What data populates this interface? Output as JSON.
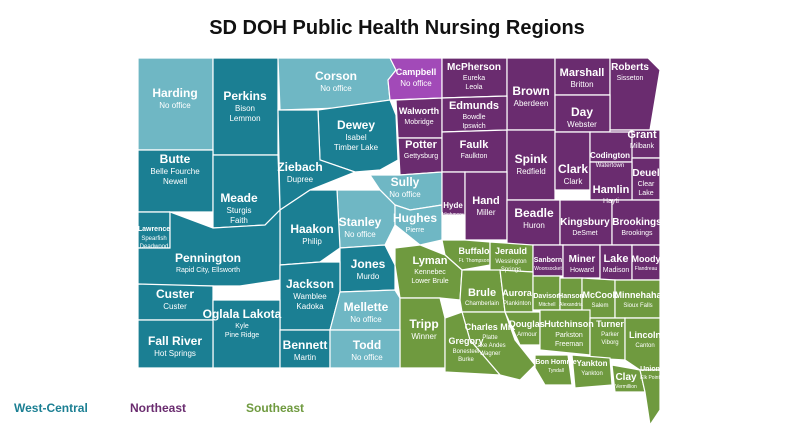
{
  "title": "SD DOH Public Health Nursing Regions",
  "colors": {
    "west_central": "#1b7f93",
    "west_central_no_office": "#6fb7c4",
    "northeast": "#6a2c6f",
    "northeast_light": "#a24ab8",
    "southeast": "#6f9a3f"
  },
  "legend": [
    "West-Central",
    "Northeast",
    "Southeast"
  ],
  "counties": [
    {
      "name": "Harding",
      "lines": [
        "No office"
      ]
    },
    {
      "name": "Perkins",
      "lines": [
        "Bison",
        "Lemmon"
      ]
    },
    {
      "name": "Corson",
      "lines": [
        "No office"
      ]
    },
    {
      "name": "Campbell",
      "lines": [
        "No office"
      ]
    },
    {
      "name": "McPherson",
      "lines": [
        "Eureka",
        "Leola"
      ]
    },
    {
      "name": "Brown",
      "lines": [
        "Aberdeen"
      ]
    },
    {
      "name": "Marshall",
      "lines": [
        "Britton"
      ]
    },
    {
      "name": "Roberts",
      "lines": [
        "Sisseton"
      ]
    },
    {
      "name": "Walworth",
      "lines": [
        "Mobridge"
      ]
    },
    {
      "name": "Edmunds",
      "lines": [
        "Bowdle",
        "Ipswich"
      ]
    },
    {
      "name": "Day",
      "lines": [
        "Webster"
      ]
    },
    {
      "name": "Grant",
      "lines": [
        "Milbank"
      ]
    },
    {
      "name": "Dewey",
      "lines": [
        "Isabel",
        "Timber Lake"
      ]
    },
    {
      "name": "Butte",
      "lines": [
        "Belle Fourche",
        "Newell"
      ]
    },
    {
      "name": "Ziebach",
      "lines": [
        "Dupree"
      ]
    },
    {
      "name": "Potter",
      "lines": [
        "Gettysburg"
      ]
    },
    {
      "name": "Faulk",
      "lines": [
        "Faulkton"
      ]
    },
    {
      "name": "Spink",
      "lines": [
        "Redfield"
      ]
    },
    {
      "name": "Clark",
      "lines": [
        "Clark"
      ]
    },
    {
      "name": "Codington",
      "lines": [
        "Watertown"
      ]
    },
    {
      "name": "Deuel",
      "lines": [
        "Clear",
        "Lake"
      ]
    },
    {
      "name": "Meade",
      "lines": [
        "Sturgis",
        "Faith"
      ]
    },
    {
      "name": "Sully",
      "lines": [
        "No office"
      ]
    },
    {
      "name": "Hamlin",
      "lines": [
        "Hayti"
      ]
    },
    {
      "name": "Lawrence",
      "lines": [
        "Spearfish",
        "Deadwood"
      ]
    },
    {
      "name": "Stanley",
      "lines": [
        "No office"
      ]
    },
    {
      "name": "Hughes",
      "lines": [
        "Pierre"
      ]
    },
    {
      "name": "Hyde",
      "lines": [
        "Highmore"
      ]
    },
    {
      "name": "Hand",
      "lines": [
        "Miller"
      ]
    },
    {
      "name": "Beadle",
      "lines": [
        "Huron"
      ]
    },
    {
      "name": "Kingsbury",
      "lines": [
        "DeSmet"
      ]
    },
    {
      "name": "Brookings",
      "lines": [
        "Brookings"
      ]
    },
    {
      "name": "Haakon",
      "lines": [
        "Philip"
      ]
    },
    {
      "name": "Pennington",
      "lines": [
        "Rapid City, Ellsworth"
      ]
    },
    {
      "name": "Buffalo",
      "lines": [
        "Ft. Thompson"
      ]
    },
    {
      "name": "Jerauld",
      "lines": [
        "Wessington",
        "Springs"
      ]
    },
    {
      "name": "Sanborn",
      "lines": [
        "Woonsocket"
      ]
    },
    {
      "name": "Miner",
      "lines": [
        "Howard"
      ]
    },
    {
      "name": "Lake",
      "lines": [
        "Madison"
      ]
    },
    {
      "name": "Moody",
      "lines": [
        "Flandreau"
      ]
    },
    {
      "name": "Jones",
      "lines": [
        "Murdo"
      ]
    },
    {
      "name": "Lyman",
      "lines": [
        "Kennebec",
        "Lower Brule"
      ]
    },
    {
      "name": "Jackson",
      "lines": [
        "Wamblee",
        "Kadoka"
      ]
    },
    {
      "name": "Custer",
      "lines": [
        "Custer"
      ]
    },
    {
      "name": "Brule",
      "lines": [
        "Chamberlain"
      ]
    },
    {
      "name": "Aurora",
      "lines": [
        "Plankinton"
      ]
    },
    {
      "name": "Davison",
      "lines": [
        "Mitchell"
      ]
    },
    {
      "name": "Hanson",
      "lines": [
        "Alexandria"
      ]
    },
    {
      "name": "McCook",
      "lines": [
        "Salem"
      ]
    },
    {
      "name": "Minnehaha",
      "lines": [
        "Sioux Falls"
      ]
    },
    {
      "name": "Mellette",
      "lines": [
        "No office"
      ]
    },
    {
      "name": "Tripp",
      "lines": [
        "Winner"
      ]
    },
    {
      "name": "Oglala Lakota",
      "lines": [
        "Kyle",
        "Pine Ridge"
      ]
    },
    {
      "name": "Charles Mix",
      "lines": [
        "Platte",
        "Lake Andes",
        "Wagner"
      ]
    },
    {
      "name": "Douglas",
      "lines": [
        "Armour"
      ]
    },
    {
      "name": "Hutchinson",
      "lines": [
        "Parkston",
        "Freeman"
      ]
    },
    {
      "name": "Turner",
      "lines": [
        "Parker",
        "Viborg"
      ]
    },
    {
      "name": "Fall River",
      "lines": [
        "Hot Springs"
      ]
    },
    {
      "name": "Bennett",
      "lines": [
        "Martin"
      ]
    },
    {
      "name": "Todd",
      "lines": [
        "No office"
      ]
    },
    {
      "name": "Gregory",
      "lines": [
        "Bonesteel",
        "Burke"
      ]
    },
    {
      "name": "Lincoln",
      "lines": [
        "Canton"
      ]
    },
    {
      "name": "Bon Homme",
      "lines": [
        "Tyndall"
      ]
    },
    {
      "name": "Yankton",
      "lines": [
        "Yankton"
      ]
    },
    {
      "name": "Clay",
      "lines": [
        "Vermillion"
      ]
    },
    {
      "name": "Union",
      "lines": [
        "Elk Point"
      ]
    }
  ]
}
